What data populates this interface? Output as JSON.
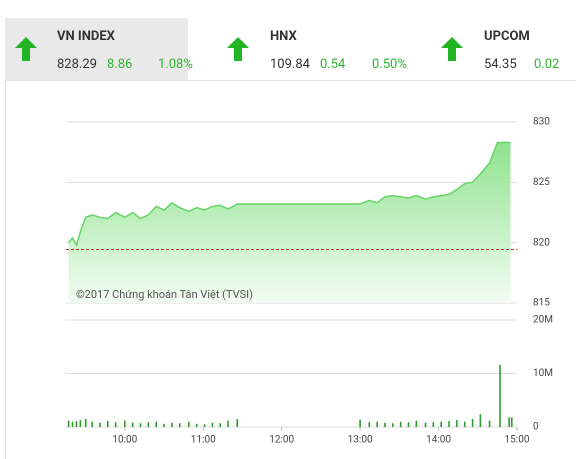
{
  "indices": [
    {
      "name": "VN INDEX",
      "value": "828.29",
      "change": "8.86",
      "percent": "1.08%"
    },
    {
      "name": "HNX",
      "value": "109.84",
      "change": "0.54",
      "percent": "0.50%"
    },
    {
      "name": "UPCOM",
      "value": "54.35",
      "change": "0.02"
    }
  ],
  "chart_data": [
    {
      "type": "area",
      "color": "#66d466",
      "annotation": "©2017 Chứng khoán Tân Việt (TVSI)",
      "reference": 819.43,
      "reference_color": "#c0392b",
      "xlim": [
        555,
        900
      ],
      "ylim": [
        815,
        830
      ],
      "yticks": [
        815,
        820,
        825,
        830
      ],
      "grid": true,
      "x": [
        557,
        560,
        563,
        566,
        570,
        575,
        581,
        587,
        593,
        600,
        606,
        612,
        618,
        624,
        630,
        636,
        642,
        649,
        655,
        661,
        667,
        673,
        679,
        686,
        780,
        787,
        793,
        799,
        805,
        811,
        817,
        823,
        830,
        836,
        842,
        848,
        854,
        860,
        866,
        872,
        879,
        885,
        895
      ],
      "values": [
        820.0,
        820.4,
        819.8,
        820.9,
        822.1,
        822.3,
        822.1,
        822.0,
        822.5,
        822.1,
        822.5,
        822.0,
        822.3,
        823.0,
        822.7,
        823.3,
        822.9,
        822.6,
        822.9,
        822.7,
        823.0,
        823.1,
        822.8,
        823.2,
        823.2,
        823.5,
        823.3,
        823.8,
        823.9,
        823.8,
        823.7,
        823.9,
        823.6,
        823.8,
        823.9,
        824.0,
        824.4,
        824.9,
        825.0,
        825.7,
        826.6,
        828.3,
        828.3
      ]
    },
    {
      "type": "bar",
      "color": "#2e9b2e",
      "xlim": [
        555,
        900
      ],
      "ylim": [
        0,
        20
      ],
      "yticks": [
        0,
        {
          "value": 10,
          "label": "10M"
        },
        {
          "value": 20,
          "label": "20M"
        }
      ],
      "grid": true,
      "xticks": [
        {
          "value": 600,
          "label": "10:00"
        },
        {
          "value": 660,
          "label": "11:00"
        },
        {
          "value": 720,
          "label": "12:00"
        },
        {
          "value": 780,
          "label": "13:00"
        },
        {
          "value": 840,
          "label": "14:00"
        },
        {
          "value": 900,
          "label": "15:00"
        }
      ],
      "x": [
        557,
        560,
        563,
        566,
        570,
        575,
        581,
        587,
        593,
        600,
        606,
        612,
        618,
        624,
        630,
        636,
        642,
        649,
        655,
        661,
        667,
        673,
        679,
        686,
        780,
        787,
        793,
        799,
        805,
        811,
        817,
        823,
        830,
        836,
        842,
        848,
        854,
        860,
        866,
        872,
        879,
        887,
        894,
        896
      ],
      "values": [
        1.2,
        1.0,
        1.1,
        1.3,
        1.5,
        1.0,
        0.8,
        1.1,
        0.9,
        1.2,
        0.8,
        0.7,
        0.9,
        1.0,
        0.6,
        0.8,
        0.7,
        1.0,
        0.6,
        0.5,
        0.8,
        0.7,
        1.2,
        1.5,
        1.4,
        0.9,
        1.0,
        0.8,
        0.7,
        1.0,
        0.9,
        1.2,
        0.8,
        0.9,
        1.0,
        1.1,
        1.3,
        1.0,
        1.5,
        2.4,
        1.2,
        11.6,
        1.8,
        1.8
      ]
    }
  ]
}
